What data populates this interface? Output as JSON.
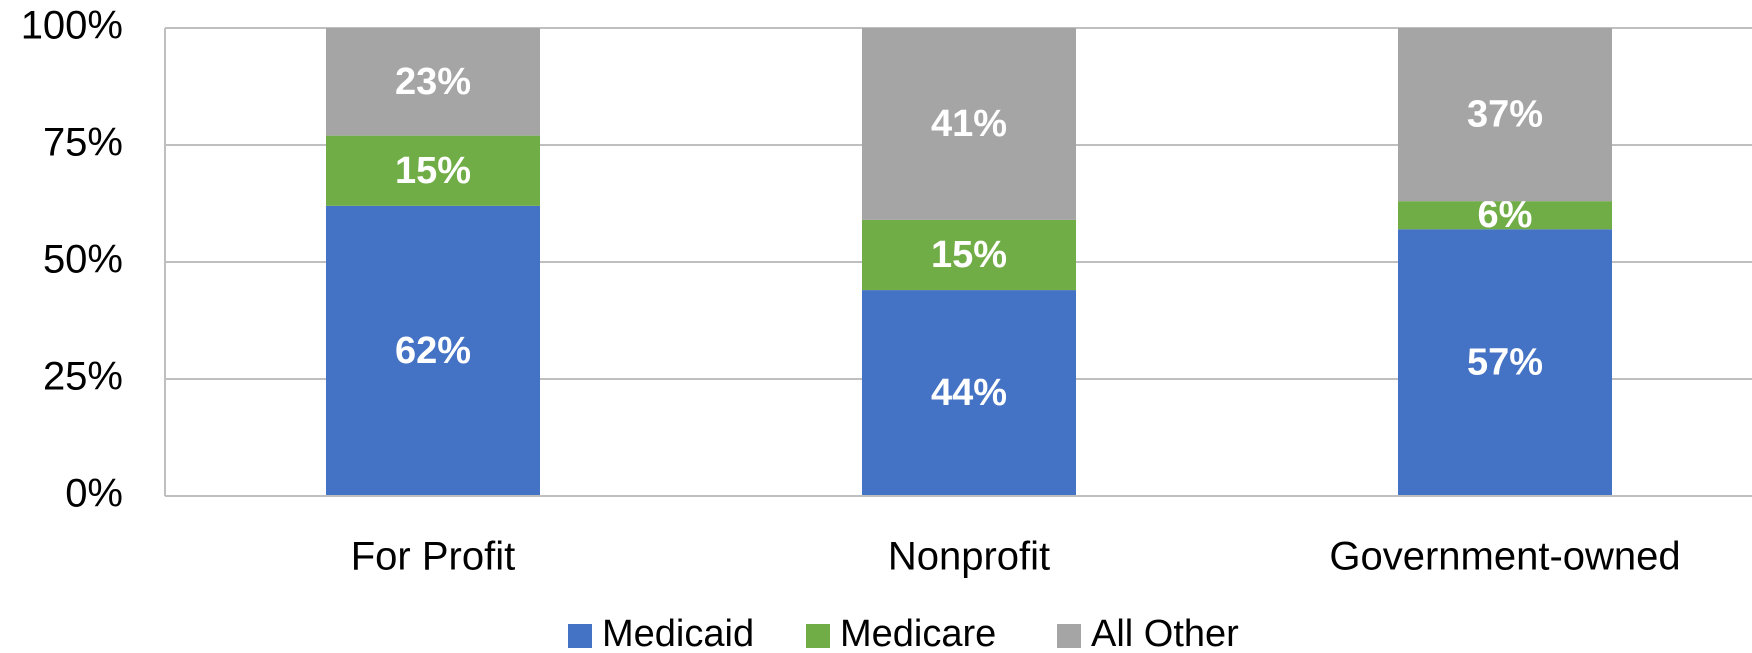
{
  "chart_data": {
    "type": "stacked_bar",
    "categories": [
      "For Profit",
      "Nonprofit",
      "Government-owned"
    ],
    "series": [
      {
        "name": "Medicaid",
        "color": "#4472c4",
        "values": [
          62,
          44,
          57
        ],
        "value_labels": [
          "62%",
          "44%",
          "57%"
        ]
      },
      {
        "name": "Medicare",
        "color": "#70ad47",
        "values": [
          15,
          15,
          6
        ],
        "value_labels": [
          "15%",
          "15%",
          "6%"
        ]
      },
      {
        "name": "All Other",
        "color": "#a5a5a5",
        "values": [
          23,
          41,
          37
        ],
        "value_labels": [
          "23%",
          "41%",
          "37%"
        ]
      }
    ],
    "ylim": [
      0,
      100
    ],
    "yticks": [
      {
        "value": 0,
        "label": "0%"
      },
      {
        "value": 25,
        "label": "25%"
      },
      {
        "value": 50,
        "label": "50%"
      },
      {
        "value": 75,
        "label": "75%"
      },
      {
        "value": 100,
        "label": "100%"
      }
    ],
    "grid": true,
    "legend": "bottom"
  }
}
